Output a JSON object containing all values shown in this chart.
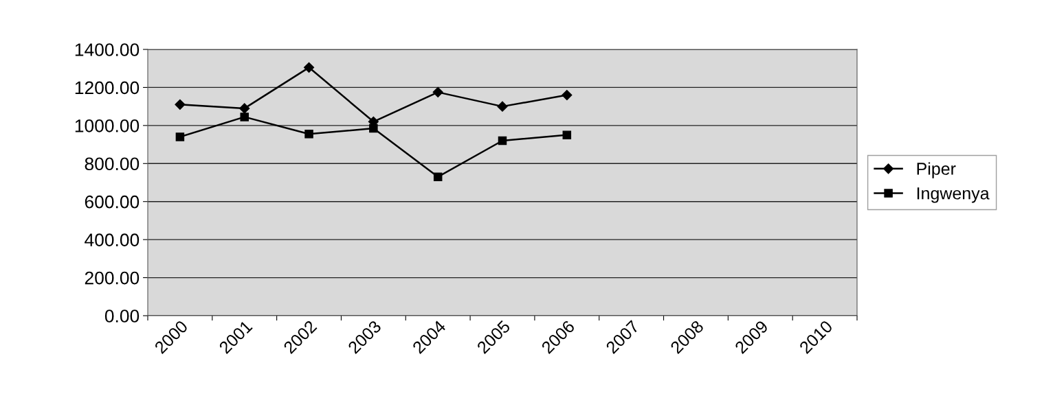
{
  "chart_data": {
    "type": "line",
    "categories": [
      "2000",
      "2001",
      "2002",
      "2003",
      "2004",
      "2005",
      "2006",
      "2007",
      "2008",
      "2009",
      "2010"
    ],
    "series": [
      {
        "name": "Piper",
        "color": "#000000",
        "marker": "diamond",
        "values": [
          1110,
          1090,
          1305,
          1020,
          1175,
          1100,
          1160,
          null,
          null,
          null,
          null
        ]
      },
      {
        "name": "Ingwenya",
        "color": "#000000",
        "marker": "square",
        "values": [
          940,
          1045,
          955,
          985,
          730,
          920,
          950,
          null,
          null,
          null,
          null
        ]
      }
    ],
    "ylim": [
      0,
      1400
    ],
    "yticks": [
      {
        "value": 0,
        "label": "0.00"
      },
      {
        "value": 200,
        "label": "200.00"
      },
      {
        "value": 400,
        "label": "400.00"
      },
      {
        "value": 600,
        "label": "600.00"
      },
      {
        "value": 800,
        "label": "800.00"
      },
      {
        "value": 1000,
        "label": "1000.00"
      },
      {
        "value": 1200,
        "label": "1200.00"
      },
      {
        "value": 1400,
        "label": "1400.00"
      }
    ],
    "grid": "y",
    "legend": "right",
    "line_style": "solid"
  }
}
